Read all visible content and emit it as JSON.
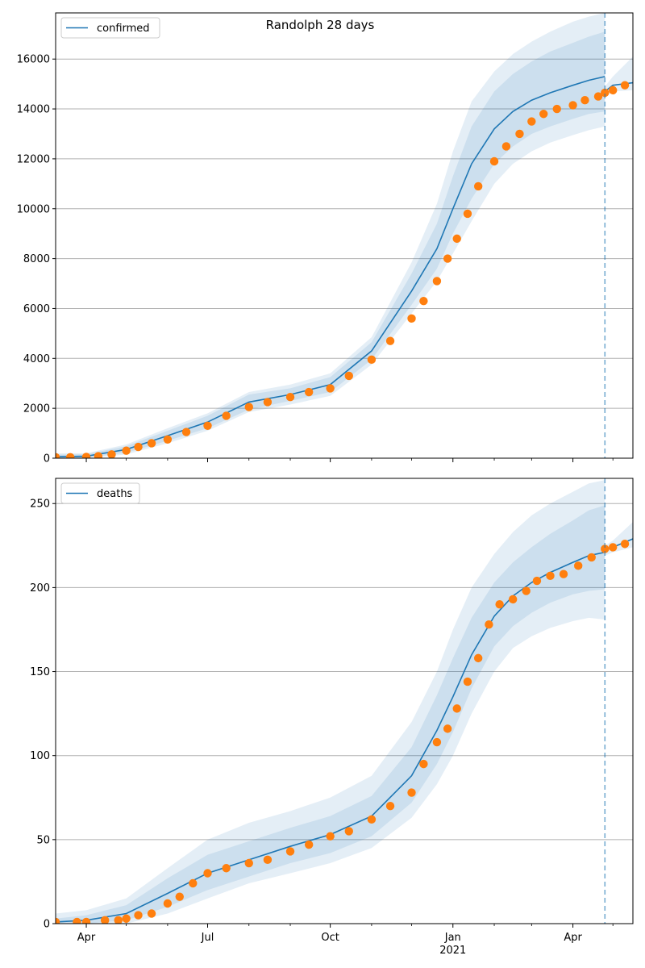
{
  "figure": {
    "title": "Randolph 28 days"
  },
  "colors": {
    "model_line": "#1f77b4",
    "band": "#1f77b4",
    "observed": "#ff7f0e",
    "grid": "#b0b0b0",
    "vline": "#1f77b4"
  },
  "chart_data": [
    {
      "type": "line",
      "title": "Randolph 28 days",
      "legend": {
        "label": "confirmed",
        "placement": "top-left"
      },
      "x_unit": "date",
      "xlim": [
        "2020-03-09",
        "2021-05-16"
      ],
      "ylim": [
        0,
        17850
      ],
      "yticks": [
        0,
        2000,
        4000,
        6000,
        8000,
        10000,
        12000,
        14000,
        16000
      ],
      "grid_y": true,
      "forecast_start": "2021-04-25",
      "model": {
        "x": [
          "2020-03-09",
          "2020-04-01",
          "2020-05-01",
          "2020-06-01",
          "2020-07-01",
          "2020-08-01",
          "2020-09-01",
          "2020-10-01",
          "2020-11-01",
          "2020-12-01",
          "2020-12-20",
          "2021-01-01",
          "2021-01-15",
          "2021-02-01",
          "2021-02-15",
          "2021-03-01",
          "2021-03-15",
          "2021-04-01",
          "2021-04-13",
          "2021-04-25",
          "2021-05-01",
          "2021-05-16"
        ],
        "y": [
          60,
          80,
          350,
          900,
          1450,
          2250,
          2550,
          2950,
          4300,
          6700,
          8400,
          10000,
          11800,
          13200,
          13900,
          14350,
          14650,
          14950,
          15150,
          15300,
          14950,
          15050
        ],
        "bands": [
          {
            "lower": [
              0,
              20,
              220,
              700,
              1200,
              1950,
              2300,
              2650,
              3950,
              6150,
              7600,
              9000,
              10400,
              11800,
              12500,
              13000,
              13300,
              13600,
              13800,
              13900,
              14700,
              14700
            ],
            "upper": [
              140,
              160,
              480,
              1100,
              1700,
              2550,
              2800,
              3250,
              4650,
              7400,
              9400,
              11300,
              13300,
              14700,
              15400,
              15900,
              16300,
              16650,
              16900,
              17100,
              15100,
              15600
            ]
          },
          {
            "lower": [
              0,
              0,
              150,
              600,
              1100,
              1850,
              2150,
              2500,
              3750,
              5800,
              7100,
              8200,
              9500,
              11000,
              11800,
              12300,
              12650,
              12950,
              13150,
              13300,
              14700,
              14700
            ],
            "upper": [
              200,
              200,
              550,
              1200,
              1800,
              2650,
              2950,
              3400,
              4850,
              7850,
              10200,
              12300,
              14300,
              15500,
              16200,
              16700,
              17100,
              17500,
              17700,
              17850,
              15400,
              16050
            ]
          }
        ],
        "continuation": {
          "x": [
            "2021-04-25",
            "2021-05-01",
            "2021-05-16"
          ],
          "y": [
            14700,
            14950,
            15050
          ],
          "lower": [
            14500,
            14700,
            14750
          ],
          "upper": [
            14900,
            15300,
            16100
          ]
        }
      },
      "observed": {
        "x": [
          "2020-03-09",
          "2020-03-20",
          "2020-04-01",
          "2020-04-10",
          "2020-04-20",
          "2020-05-01",
          "2020-05-10",
          "2020-05-20",
          "2020-06-01",
          "2020-06-15",
          "2020-07-01",
          "2020-07-15",
          "2020-08-01",
          "2020-08-15",
          "2020-09-01",
          "2020-09-15",
          "2020-10-01",
          "2020-10-15",
          "2020-11-01",
          "2020-11-15",
          "2020-12-01",
          "2020-12-10",
          "2020-12-20",
          "2020-12-28",
          "2021-01-04",
          "2021-01-12",
          "2021-01-20",
          "2021-02-01",
          "2021-02-10",
          "2021-02-20",
          "2021-03-01",
          "2021-03-10",
          "2021-03-20",
          "2021-04-01",
          "2021-04-10",
          "2021-04-20",
          "2021-04-25",
          "2021-05-01",
          "2021-05-10"
        ],
        "y": [
          40,
          40,
          50,
          80,
          150,
          300,
          450,
          600,
          750,
          1050,
          1300,
          1700,
          2050,
          2250,
          2450,
          2650,
          2800,
          3300,
          3950,
          4700,
          5600,
          6300,
          7100,
          8000,
          8800,
          9800,
          10900,
          11900,
          12500,
          13000,
          13500,
          13800,
          14000,
          14150,
          14350,
          14500,
          14650,
          14750,
          14950
        ]
      }
    },
    {
      "type": "line",
      "legend": {
        "label": "deaths",
        "placement": "top-left"
      },
      "x_unit": "date",
      "xlim": [
        "2020-03-09",
        "2021-05-16"
      ],
      "ylim": [
        0,
        265
      ],
      "yticks": [
        0,
        50,
        100,
        150,
        200,
        250
      ],
      "grid_y": true,
      "forecast_start": "2021-04-25",
      "xticks": [
        {
          "date": "2020-04-01",
          "label": "Apr"
        },
        {
          "date": "2020-07-01",
          "label": "Jul"
        },
        {
          "date": "2020-10-01",
          "label": "Oct"
        },
        {
          "date": "2021-01-01",
          "label": "Jan",
          "sublabel": "2021"
        },
        {
          "date": "2021-04-01",
          "label": "Apr"
        }
      ],
      "model": {
        "x": [
          "2020-03-09",
          "2020-04-01",
          "2020-05-01",
          "2020-06-01",
          "2020-07-01",
          "2020-08-01",
          "2020-09-01",
          "2020-10-01",
          "2020-11-01",
          "2020-12-01",
          "2020-12-20",
          "2021-01-01",
          "2021-01-15",
          "2021-02-01",
          "2021-02-15",
          "2021-03-01",
          "2021-03-15",
          "2021-04-01",
          "2021-04-13",
          "2021-04-25",
          "2021-05-01",
          "2021-05-16"
        ],
        "y": [
          1,
          2,
          6,
          18,
          30,
          38,
          46,
          53,
          64,
          88,
          115,
          135,
          160,
          183,
          195,
          203,
          209,
          215,
          219,
          221,
          224,
          229
        ],
        "bands": [
          {
            "lower": [
              0,
              0,
              2,
              10,
              20,
              28,
              36,
              42,
              52,
              72,
              95,
              114,
              140,
              165,
              177,
              185,
              191,
              196,
              198,
              199,
              222,
              224
            ],
            "upper": [
              3,
              5,
              11,
              27,
              41,
              49,
              57,
              64,
              76,
              105,
              136,
              158,
              182,
              203,
              215,
              224,
              232,
              240,
              246,
              249,
              226,
              234
            ]
          },
          {
            "lower": [
              0,
              0,
              0,
              6,
              15,
              24,
              30,
              36,
              45,
              63,
              83,
              100,
              125,
              150,
              164,
              171,
              176,
              180,
              182,
              181,
              222,
              224
            ],
            "upper": [
              6,
              8,
              15,
              33,
              50,
              60,
              67,
              75,
              88,
              120,
              150,
              175,
              200,
              220,
              233,
              243,
              250,
              257,
              262,
              264,
              227,
              239
            ]
          }
        ],
        "continuation": {
          "x": [
            "2021-04-25",
            "2021-05-01",
            "2021-05-16"
          ],
          "y": [
            222,
            224,
            229
          ],
          "lower": [
            219,
            221,
            224
          ],
          "upper": [
            225,
            228,
            239
          ]
        }
      },
      "observed": {
        "x": [
          "2020-03-09",
          "2020-03-25",
          "2020-04-01",
          "2020-04-15",
          "2020-04-25",
          "2020-05-01",
          "2020-05-10",
          "2020-05-20",
          "2020-06-01",
          "2020-06-10",
          "2020-06-20",
          "2020-07-01",
          "2020-07-15",
          "2020-08-01",
          "2020-08-15",
          "2020-09-01",
          "2020-09-15",
          "2020-10-01",
          "2020-10-15",
          "2020-11-01",
          "2020-11-15",
          "2020-12-01",
          "2020-12-10",
          "2020-12-20",
          "2020-12-28",
          "2021-01-04",
          "2021-01-12",
          "2021-01-20",
          "2021-01-28",
          "2021-02-05",
          "2021-02-15",
          "2021-02-25",
          "2021-03-05",
          "2021-03-15",
          "2021-03-25",
          "2021-04-05",
          "2021-04-15",
          "2021-04-25",
          "2021-05-01",
          "2021-05-10"
        ],
        "y": [
          1,
          1,
          1,
          2,
          2,
          3,
          5,
          6,
          12,
          16,
          24,
          30,
          33,
          36,
          38,
          43,
          47,
          52,
          55,
          62,
          70,
          78,
          95,
          108,
          116,
          128,
          144,
          158,
          178,
          190,
          193,
          198,
          204,
          207,
          208,
          213,
          218,
          223,
          224,
          226
        ]
      }
    }
  ]
}
